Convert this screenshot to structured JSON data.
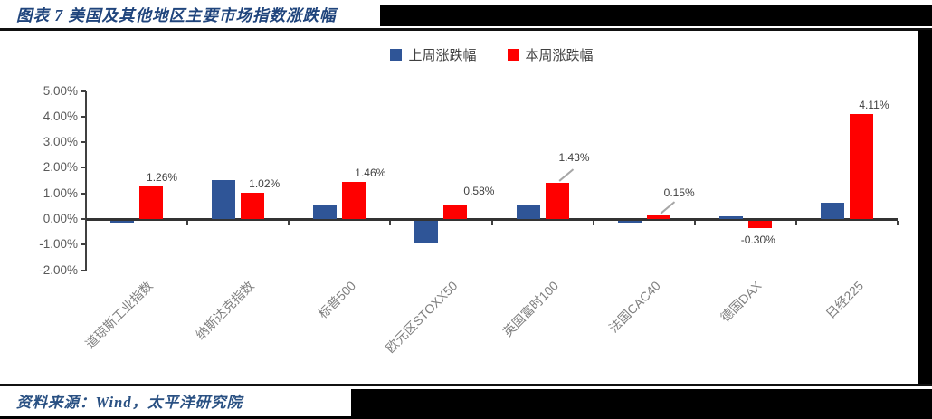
{
  "header": {
    "title": "图表 7 美国及其他地区主要市场指数涨跌幅"
  },
  "footer": {
    "source": "资料来源：Wind，太平洋研究院"
  },
  "legend": [
    {
      "label": "上周涨跌幅",
      "color": "#2F5597"
    },
    {
      "label": "本周涨跌幅",
      "color": "#FF0000"
    }
  ],
  "chart_data": {
    "type": "bar",
    "title": "图表 7 美国及其他地区主要市场指数涨跌幅",
    "categories": [
      "道琼斯工业指数",
      "纳斯达克指数",
      "标普500",
      "欧元区STOXX50",
      "英国富时100",
      "法国CAC40",
      "德国DAX",
      "日经225"
    ],
    "series": [
      {
        "name": "上周涨跌幅",
        "color": "#2F5597",
        "values": [
          -0.1,
          1.52,
          0.58,
          -0.86,
          0.55,
          -0.1,
          0.12,
          0.62
        ],
        "data_labels_shown": false
      },
      {
        "name": "本周涨跌幅",
        "color": "#FF0000",
        "values": [
          1.26,
          1.02,
          1.46,
          0.58,
          1.43,
          0.15,
          -0.3,
          4.11
        ],
        "data_labels_shown": true,
        "labels": [
          "1.26%",
          "1.02%",
          "1.46%",
          "0.58%",
          "1.43%",
          "0.15%",
          "-0.30%",
          "4.11%"
        ]
      }
    ],
    "xlabel": "",
    "ylabel": "",
    "ylim": [
      -2,
      5
    ],
    "ytick_step": 1,
    "ytick_labels": [
      "5.00%",
      "4.00%",
      "3.00%",
      "2.00%",
      "1.00%",
      "0.00%",
      "-1.00%",
      "-2.00%"
    ],
    "grid": false,
    "legend_position": "top-center",
    "bar_orientation": "vertical"
  },
  "colors": {
    "accent_navy": "#1f447c",
    "bar_blue": "#2F5597",
    "bar_red": "#FF0000",
    "axis": "#404040",
    "category_label": "#7f7f7f",
    "fill_black": "#000000"
  }
}
